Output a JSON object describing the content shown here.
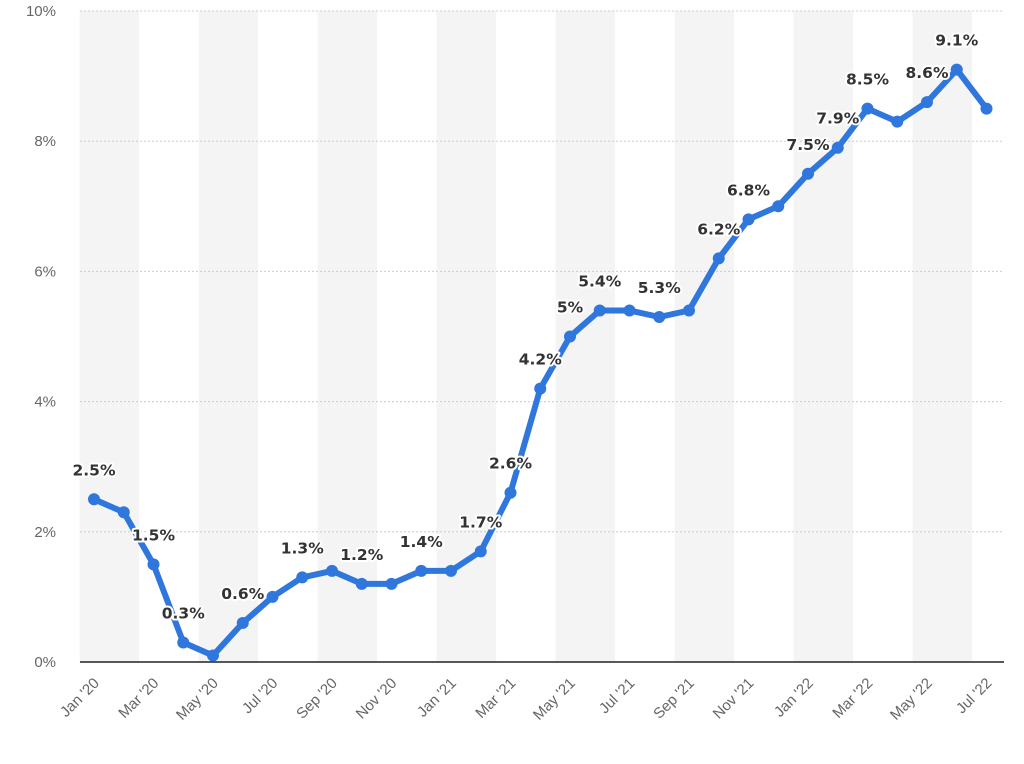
{
  "chart_data": {
    "type": "line",
    "categories": [
      "Jan '20",
      "Feb '20",
      "Mar '20",
      "Apr '20",
      "May '20",
      "Jun '20",
      "Jul '20",
      "Aug '20",
      "Sep '20",
      "Oct '20",
      "Nov '20",
      "Dec '20",
      "Jan '21",
      "Feb '21",
      "Mar '21",
      "Apr '21",
      "May '21",
      "Jun '21",
      "Jul '21",
      "Aug '21",
      "Sep '21",
      "Oct '21",
      "Nov '21",
      "Dec '21",
      "Jan '22",
      "Feb '22",
      "Mar '22",
      "Apr '22",
      "May '22",
      "Jun '22",
      "Jul '22"
    ],
    "x_tick_labels": [
      "Jan '20",
      "Mar '20",
      "May '20",
      "Jul '20",
      "Sep '20",
      "Nov '20",
      "Jan '21",
      "Mar '21",
      "May '21",
      "Jul '21",
      "Sep '21",
      "Nov '21",
      "Jan '22",
      "Mar '22",
      "May '22",
      "Jul '22"
    ],
    "values": [
      2.5,
      2.3,
      1.5,
      0.3,
      0.1,
      0.6,
      1.0,
      1.3,
      1.4,
      1.2,
      1.2,
      1.4,
      1.4,
      1.7,
      2.6,
      4.2,
      5.0,
      5.4,
      5.4,
      5.3,
      5.4,
      6.2,
      6.8,
      7.0,
      7.5,
      7.9,
      8.5,
      8.3,
      8.6,
      9.1,
      8.5
    ],
    "data_labels": [
      "2.5%",
      "",
      "1.5%",
      "0.3%",
      "",
      "0.6%",
      "",
      "1.3%",
      "",
      "1.2%",
      "",
      "1.4%",
      "",
      "1.7%",
      "2.6%",
      "4.2%",
      "5%",
      "5.4%",
      "",
      "5.3%",
      "",
      "6.2%",
      "6.8%",
      "",
      "7.5%",
      "7.9%",
      "8.5%",
      "",
      "8.6%",
      "9.1%",
      ""
    ],
    "y_tick_labels": [
      "0%",
      "2%",
      "4%",
      "6%",
      "8%",
      "10%"
    ],
    "y_ticks": [
      0,
      2,
      4,
      6,
      8,
      10
    ],
    "ylim": [
      0,
      10
    ],
    "title": "",
    "xlabel": "",
    "ylabel": "",
    "grid": true,
    "colors": {
      "line": "#2f76dd",
      "band": "#f4f4f4",
      "grid": "#cccccc",
      "axis": "#222222"
    }
  }
}
